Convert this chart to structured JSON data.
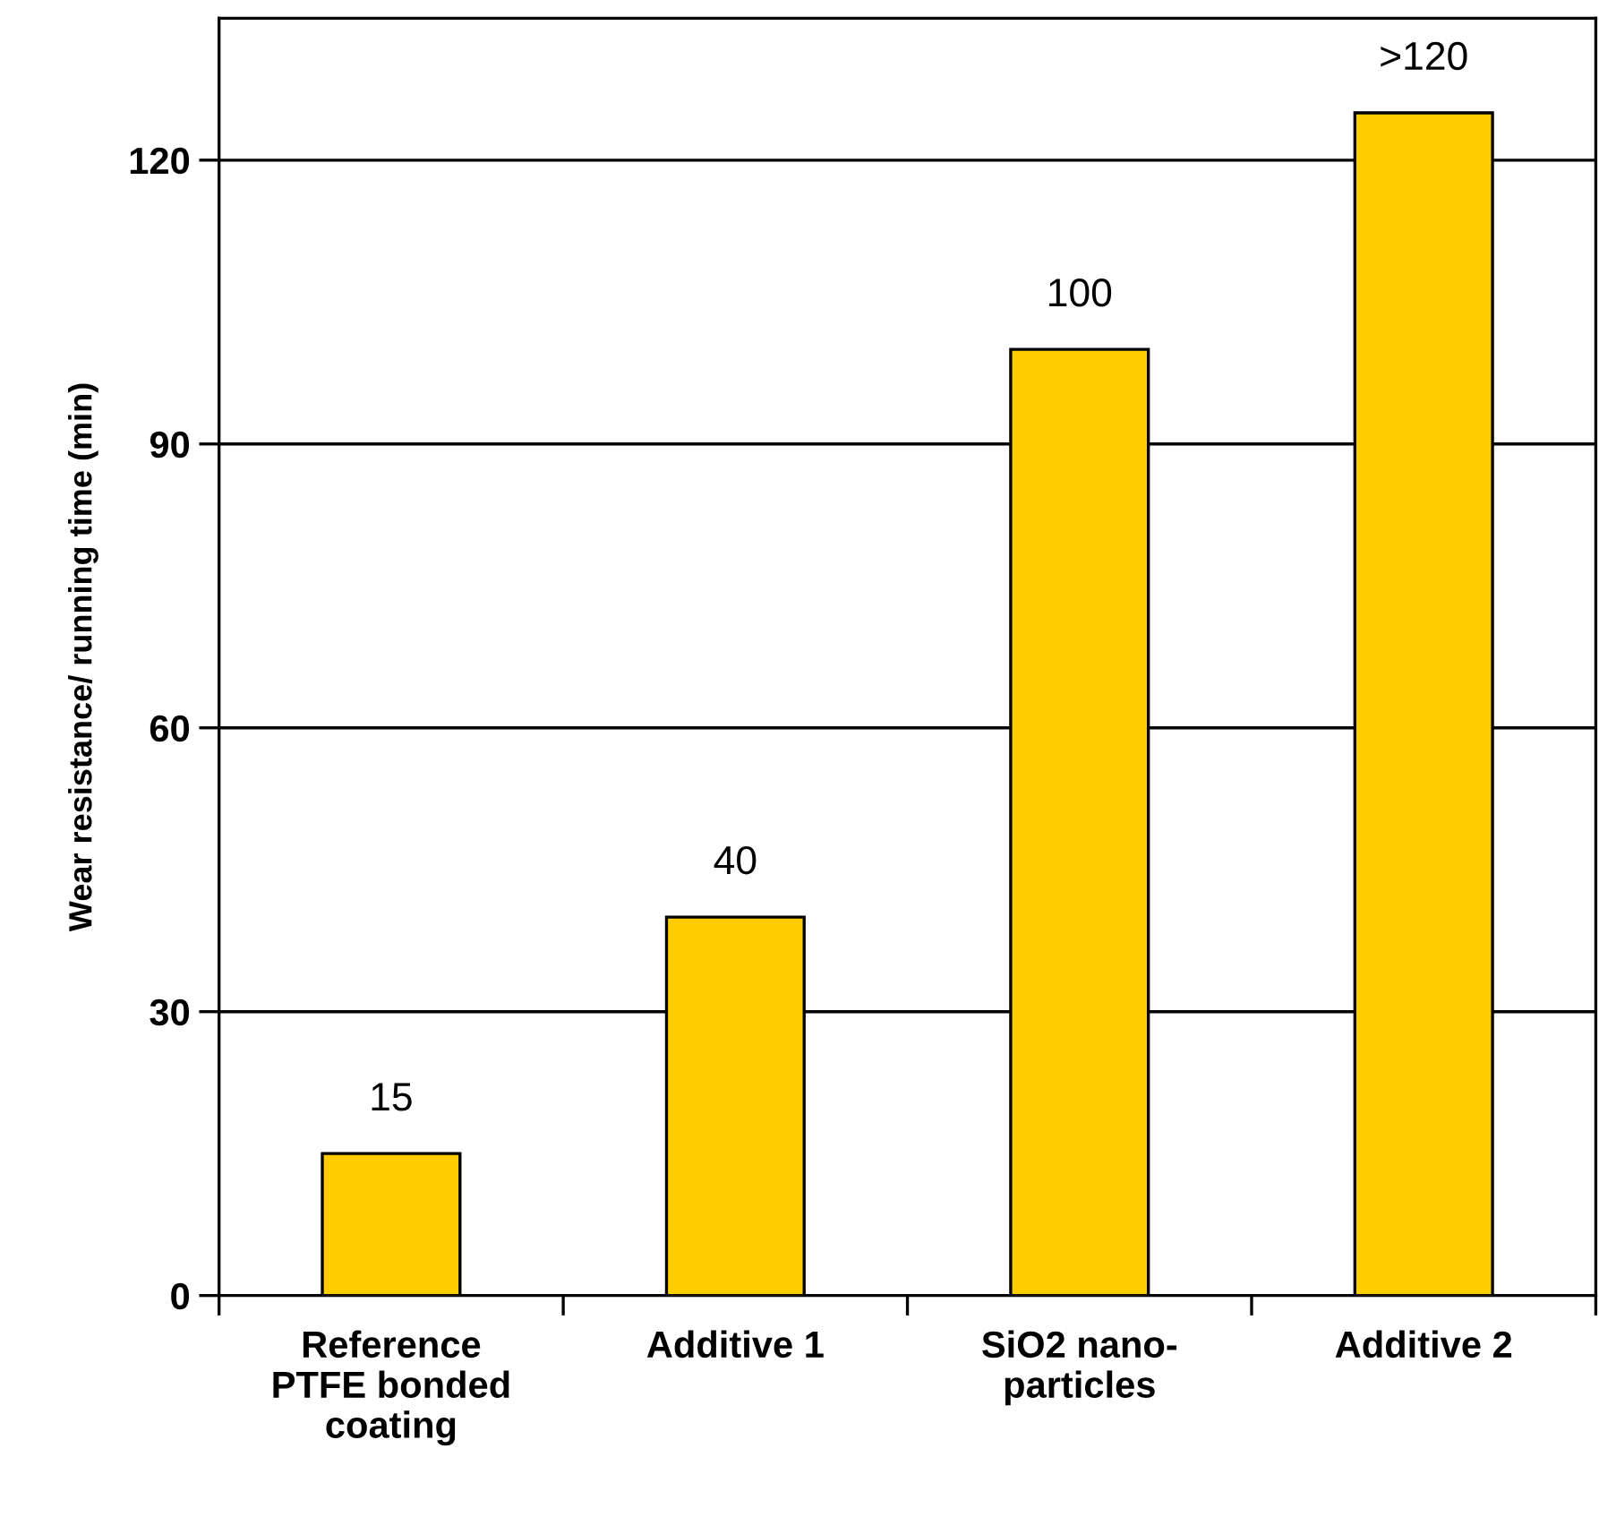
{
  "chart_data": {
    "type": "bar",
    "ylabel": "Wear resistance/ running time (min)",
    "categories": [
      "Reference\nPTFE bonded\ncoating",
      "Additive 1",
      "SiO2 nano-\nparticles",
      "Additive 2"
    ],
    "values": [
      15,
      40,
      100,
      125
    ],
    "value_labels": [
      "15",
      "40",
      "100",
      ">120"
    ],
    "color": "#ffcc00",
    "ylim": [
      0,
      135
    ],
    "yticks": [
      0,
      30,
      60,
      90,
      120
    ],
    "grid": "y"
  }
}
